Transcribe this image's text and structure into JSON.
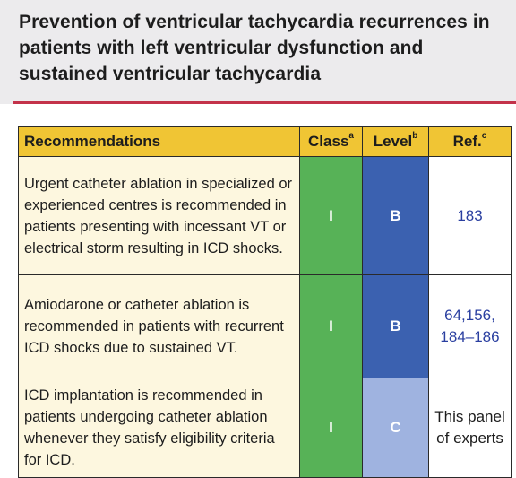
{
  "header": {
    "title": "Prevention of ventricular tachycardia recurrences in patients with left ventricular dysfunction and sustained ventricular tachycardia"
  },
  "table": {
    "columns": {
      "recommendations": "Recommendations",
      "class": "Class",
      "class_sup": "a",
      "level": "Level",
      "level_sup": "b",
      "ref": "Ref.",
      "ref_sup": "c"
    },
    "rows": [
      {
        "recommendation": "Urgent catheter ablation in specialized or experienced centres is recommended in patients presenting with incessant VT or electrical storm resulting in ICD shocks.",
        "class": "I",
        "level": "B",
        "ref": "183"
      },
      {
        "recommendation": "Amiodarone or catheter ablation is recommended in patients with recurrent ICD shocks due to sustained VT.",
        "class": "I",
        "level": "B",
        "ref": "64,156, 184–186"
      },
      {
        "recommendation": "ICD implantation is recommended in patients undergoing catheter ablation whenever they satisfy eligibility criteria for ICD.",
        "class": "I",
        "level": "C",
        "ref": "This panel of experts"
      }
    ]
  },
  "colors": {
    "header_fill": "#f0c534",
    "class_I": "#57b257",
    "level_B": "#3b61b0",
    "level_C": "#9fb3e0",
    "accent_rule": "#c3324a",
    "ref_link": "#2a3fa0"
  }
}
